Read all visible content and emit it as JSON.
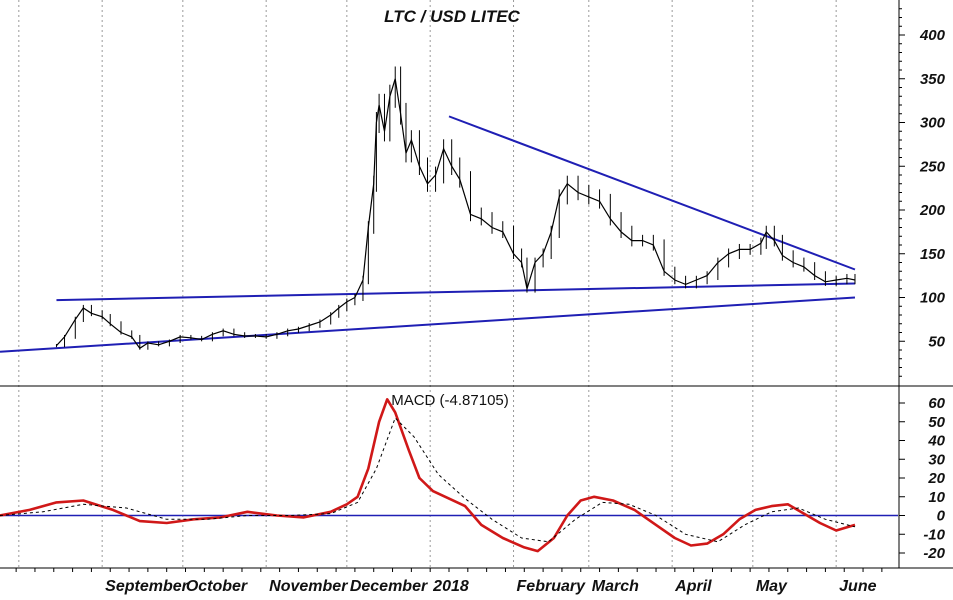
{
  "chart_data": [
    {
      "type": "candlestick",
      "title": "LTC / USD LITEC",
      "xlabel": "",
      "ylabel": "",
      "ylim": [
        0,
        440
      ],
      "y_ticks": [
        50,
        100,
        150,
        200,
        250,
        300,
        350,
        400
      ],
      "grid": "vertical dotted at month boundaries",
      "month_labels": [
        "September",
        "October",
        "November",
        "December",
        "2018",
        "February",
        "March",
        "April",
        "May",
        "June"
      ],
      "price_series": {
        "name": "LTC/USD",
        "color": "#000000",
        "points": [
          [
            "2017-08-15",
            45
          ],
          [
            "2017-08-18",
            55
          ],
          [
            "2017-08-22",
            75
          ],
          [
            "2017-08-25",
            88
          ],
          [
            "2017-08-28",
            82
          ],
          [
            "2017-09-01",
            78
          ],
          [
            "2017-09-04",
            70
          ],
          [
            "2017-09-08",
            60
          ],
          [
            "2017-09-12",
            55
          ],
          [
            "2017-09-15",
            42
          ],
          [
            "2017-09-18",
            48
          ],
          [
            "2017-09-22",
            46
          ],
          [
            "2017-09-26",
            50
          ],
          [
            "2017-09-30",
            55
          ],
          [
            "2017-10-04",
            54
          ],
          [
            "2017-10-08",
            52
          ],
          [
            "2017-10-12",
            58
          ],
          [
            "2017-10-16",
            62
          ],
          [
            "2017-10-20",
            58
          ],
          [
            "2017-10-24",
            56
          ],
          [
            "2017-10-28",
            56
          ],
          [
            "2017-11-01",
            55
          ],
          [
            "2017-11-05",
            58
          ],
          [
            "2017-11-09",
            62
          ],
          [
            "2017-11-13",
            64
          ],
          [
            "2017-11-17",
            68
          ],
          [
            "2017-11-21",
            72
          ],
          [
            "2017-11-25",
            80
          ],
          [
            "2017-11-28",
            88
          ],
          [
            "2017-12-01",
            95
          ],
          [
            "2017-12-04",
            100
          ],
          [
            "2017-12-07",
            120
          ],
          [
            "2017-12-09",
            180
          ],
          [
            "2017-12-11",
            230
          ],
          [
            "2017-12-12",
            300
          ],
          [
            "2017-12-13",
            320
          ],
          [
            "2017-12-15",
            290
          ],
          [
            "2017-12-17",
            330
          ],
          [
            "2017-12-19",
            350
          ],
          [
            "2017-12-21",
            310
          ],
          [
            "2017-12-23",
            265
          ],
          [
            "2017-12-25",
            280
          ],
          [
            "2017-12-28",
            250
          ],
          [
            "2017-12-31",
            230
          ],
          [
            "2018-01-03",
            240
          ],
          [
            "2018-01-06",
            270
          ],
          [
            "2018-01-09",
            250
          ],
          [
            "2018-01-12",
            235
          ],
          [
            "2018-01-16",
            195
          ],
          [
            "2018-01-20",
            190
          ],
          [
            "2018-01-24",
            180
          ],
          [
            "2018-01-28",
            175
          ],
          [
            "2018-02-01",
            150
          ],
          [
            "2018-02-04",
            140
          ],
          [
            "2018-02-06",
            110
          ],
          [
            "2018-02-09",
            140
          ],
          [
            "2018-02-12",
            150
          ],
          [
            "2018-02-15",
            175
          ],
          [
            "2018-02-18",
            215
          ],
          [
            "2018-02-21",
            230
          ],
          [
            "2018-02-25",
            220
          ],
          [
            "2018-03-01",
            215
          ],
          [
            "2018-03-05",
            210
          ],
          [
            "2018-03-09",
            190
          ],
          [
            "2018-03-13",
            175
          ],
          [
            "2018-03-17",
            165
          ],
          [
            "2018-03-21",
            165
          ],
          [
            "2018-03-25",
            160
          ],
          [
            "2018-03-29",
            130
          ],
          [
            "2018-04-02",
            120
          ],
          [
            "2018-04-06",
            115
          ],
          [
            "2018-04-10",
            120
          ],
          [
            "2018-04-14",
            125
          ],
          [
            "2018-04-18",
            140
          ],
          [
            "2018-04-22",
            150
          ],
          [
            "2018-04-26",
            155
          ],
          [
            "2018-04-30",
            155
          ],
          [
            "2018-05-04",
            162
          ],
          [
            "2018-05-06",
            175
          ],
          [
            "2018-05-09",
            165
          ],
          [
            "2018-05-12",
            148
          ],
          [
            "2018-05-16",
            140
          ],
          [
            "2018-05-20",
            135
          ],
          [
            "2018-05-24",
            125
          ],
          [
            "2018-05-28",
            118
          ],
          [
            "2018-06-01",
            120
          ],
          [
            "2018-06-05",
            122
          ],
          [
            "2018-06-08",
            120
          ]
        ]
      },
      "trendlines": [
        {
          "name": "upper-triangle-line",
          "color": "#1f1fb4",
          "from": [
            "2018-01-08",
            307
          ],
          "to": [
            "2018-06-08",
            132
          ]
        },
        {
          "name": "horizontal-support-line",
          "color": "#1f1fb4",
          "from": [
            "2017-08-15",
            97
          ],
          "to": [
            "2018-06-08",
            116
          ]
        },
        {
          "name": "rising-support-line",
          "color": "#1f1fb4",
          "from": [
            "2017-07-25",
            38
          ],
          "to": [
            "2018-06-08",
            100
          ]
        }
      ]
    },
    {
      "type": "line",
      "title": "MACD (-4.87105)",
      "ylim": [
        -28,
        68
      ],
      "y_ticks": [
        60,
        50,
        40,
        30,
        20,
        10,
        0,
        -10,
        -20
      ],
      "zero_line_color": "#1f1fb4",
      "series": [
        {
          "name": "MACD",
          "color": "#d01818",
          "points": [
            [
              "2017-07-25",
              0
            ],
            [
              "2017-08-05",
              3
            ],
            [
              "2017-08-15",
              7
            ],
            [
              "2017-08-25",
              8
            ],
            [
              "2017-09-05",
              3
            ],
            [
              "2017-09-15",
              -3
            ],
            [
              "2017-09-25",
              -4
            ],
            [
              "2017-10-05",
              -2
            ],
            [
              "2017-10-15",
              -1
            ],
            [
              "2017-10-25",
              2
            ],
            [
              "2017-11-05",
              0
            ],
            [
              "2017-11-15",
              -1
            ],
            [
              "2017-11-25",
              2
            ],
            [
              "2017-12-01",
              6
            ],
            [
              "2017-12-05",
              10
            ],
            [
              "2017-12-09",
              25
            ],
            [
              "2017-12-13",
              50
            ],
            [
              "2017-12-16",
              62
            ],
            [
              "2017-12-19",
              55
            ],
            [
              "2017-12-24",
              35
            ],
            [
              "2017-12-28",
              20
            ],
            [
              "2018-01-02",
              13
            ],
            [
              "2018-01-08",
              9
            ],
            [
              "2018-01-14",
              5
            ],
            [
              "2018-01-20",
              -5
            ],
            [
              "2018-01-28",
              -12
            ],
            [
              "2018-02-05",
              -17
            ],
            [
              "2018-02-10",
              -19
            ],
            [
              "2018-02-16",
              -12
            ],
            [
              "2018-02-21",
              0
            ],
            [
              "2018-02-26",
              8
            ],
            [
              "2018-03-03",
              10
            ],
            [
              "2018-03-10",
              8
            ],
            [
              "2018-03-18",
              3
            ],
            [
              "2018-03-26",
              -5
            ],
            [
              "2018-04-02",
              -12
            ],
            [
              "2018-04-08",
              -16
            ],
            [
              "2018-04-14",
              -15
            ],
            [
              "2018-04-20",
              -10
            ],
            [
              "2018-04-26",
              -2
            ],
            [
              "2018-05-02",
              3
            ],
            [
              "2018-05-08",
              5
            ],
            [
              "2018-05-14",
              6
            ],
            [
              "2018-05-20",
              1
            ],
            [
              "2018-05-26",
              -4
            ],
            [
              "2018-06-01",
              -8
            ],
            [
              "2018-06-08",
              -5
            ]
          ]
        },
        {
          "name": "Signal",
          "color": "#000000",
          "dashed": true,
          "points": [
            [
              "2017-07-25",
              0
            ],
            [
              "2017-08-10",
              2
            ],
            [
              "2017-08-25",
              6
            ],
            [
              "2017-09-10",
              4
            ],
            [
              "2017-09-25",
              -2
            ],
            [
              "2017-10-10",
              -2
            ],
            [
              "2017-10-25",
              0
            ],
            [
              "2017-11-10",
              0
            ],
            [
              "2017-11-25",
              1
            ],
            [
              "2017-12-05",
              7
            ],
            [
              "2017-12-12",
              25
            ],
            [
              "2017-12-19",
              52
            ],
            [
              "2017-12-26",
              42
            ],
            [
              "2018-01-04",
              22
            ],
            [
              "2018-01-14",
              9
            ],
            [
              "2018-01-24",
              -2
            ],
            [
              "2018-02-04",
              -12
            ],
            [
              "2018-02-14",
              -14
            ],
            [
              "2018-02-24",
              -2
            ],
            [
              "2018-03-06",
              7
            ],
            [
              "2018-03-16",
              6
            ],
            [
              "2018-03-26",
              0
            ],
            [
              "2018-04-06",
              -10
            ],
            [
              "2018-04-18",
              -14
            ],
            [
              "2018-04-28",
              -5
            ],
            [
              "2018-05-08",
              2
            ],
            [
              "2018-05-18",
              4
            ],
            [
              "2018-05-28",
              -2
            ],
            [
              "2018-06-08",
              -6
            ]
          ]
        }
      ]
    }
  ]
}
